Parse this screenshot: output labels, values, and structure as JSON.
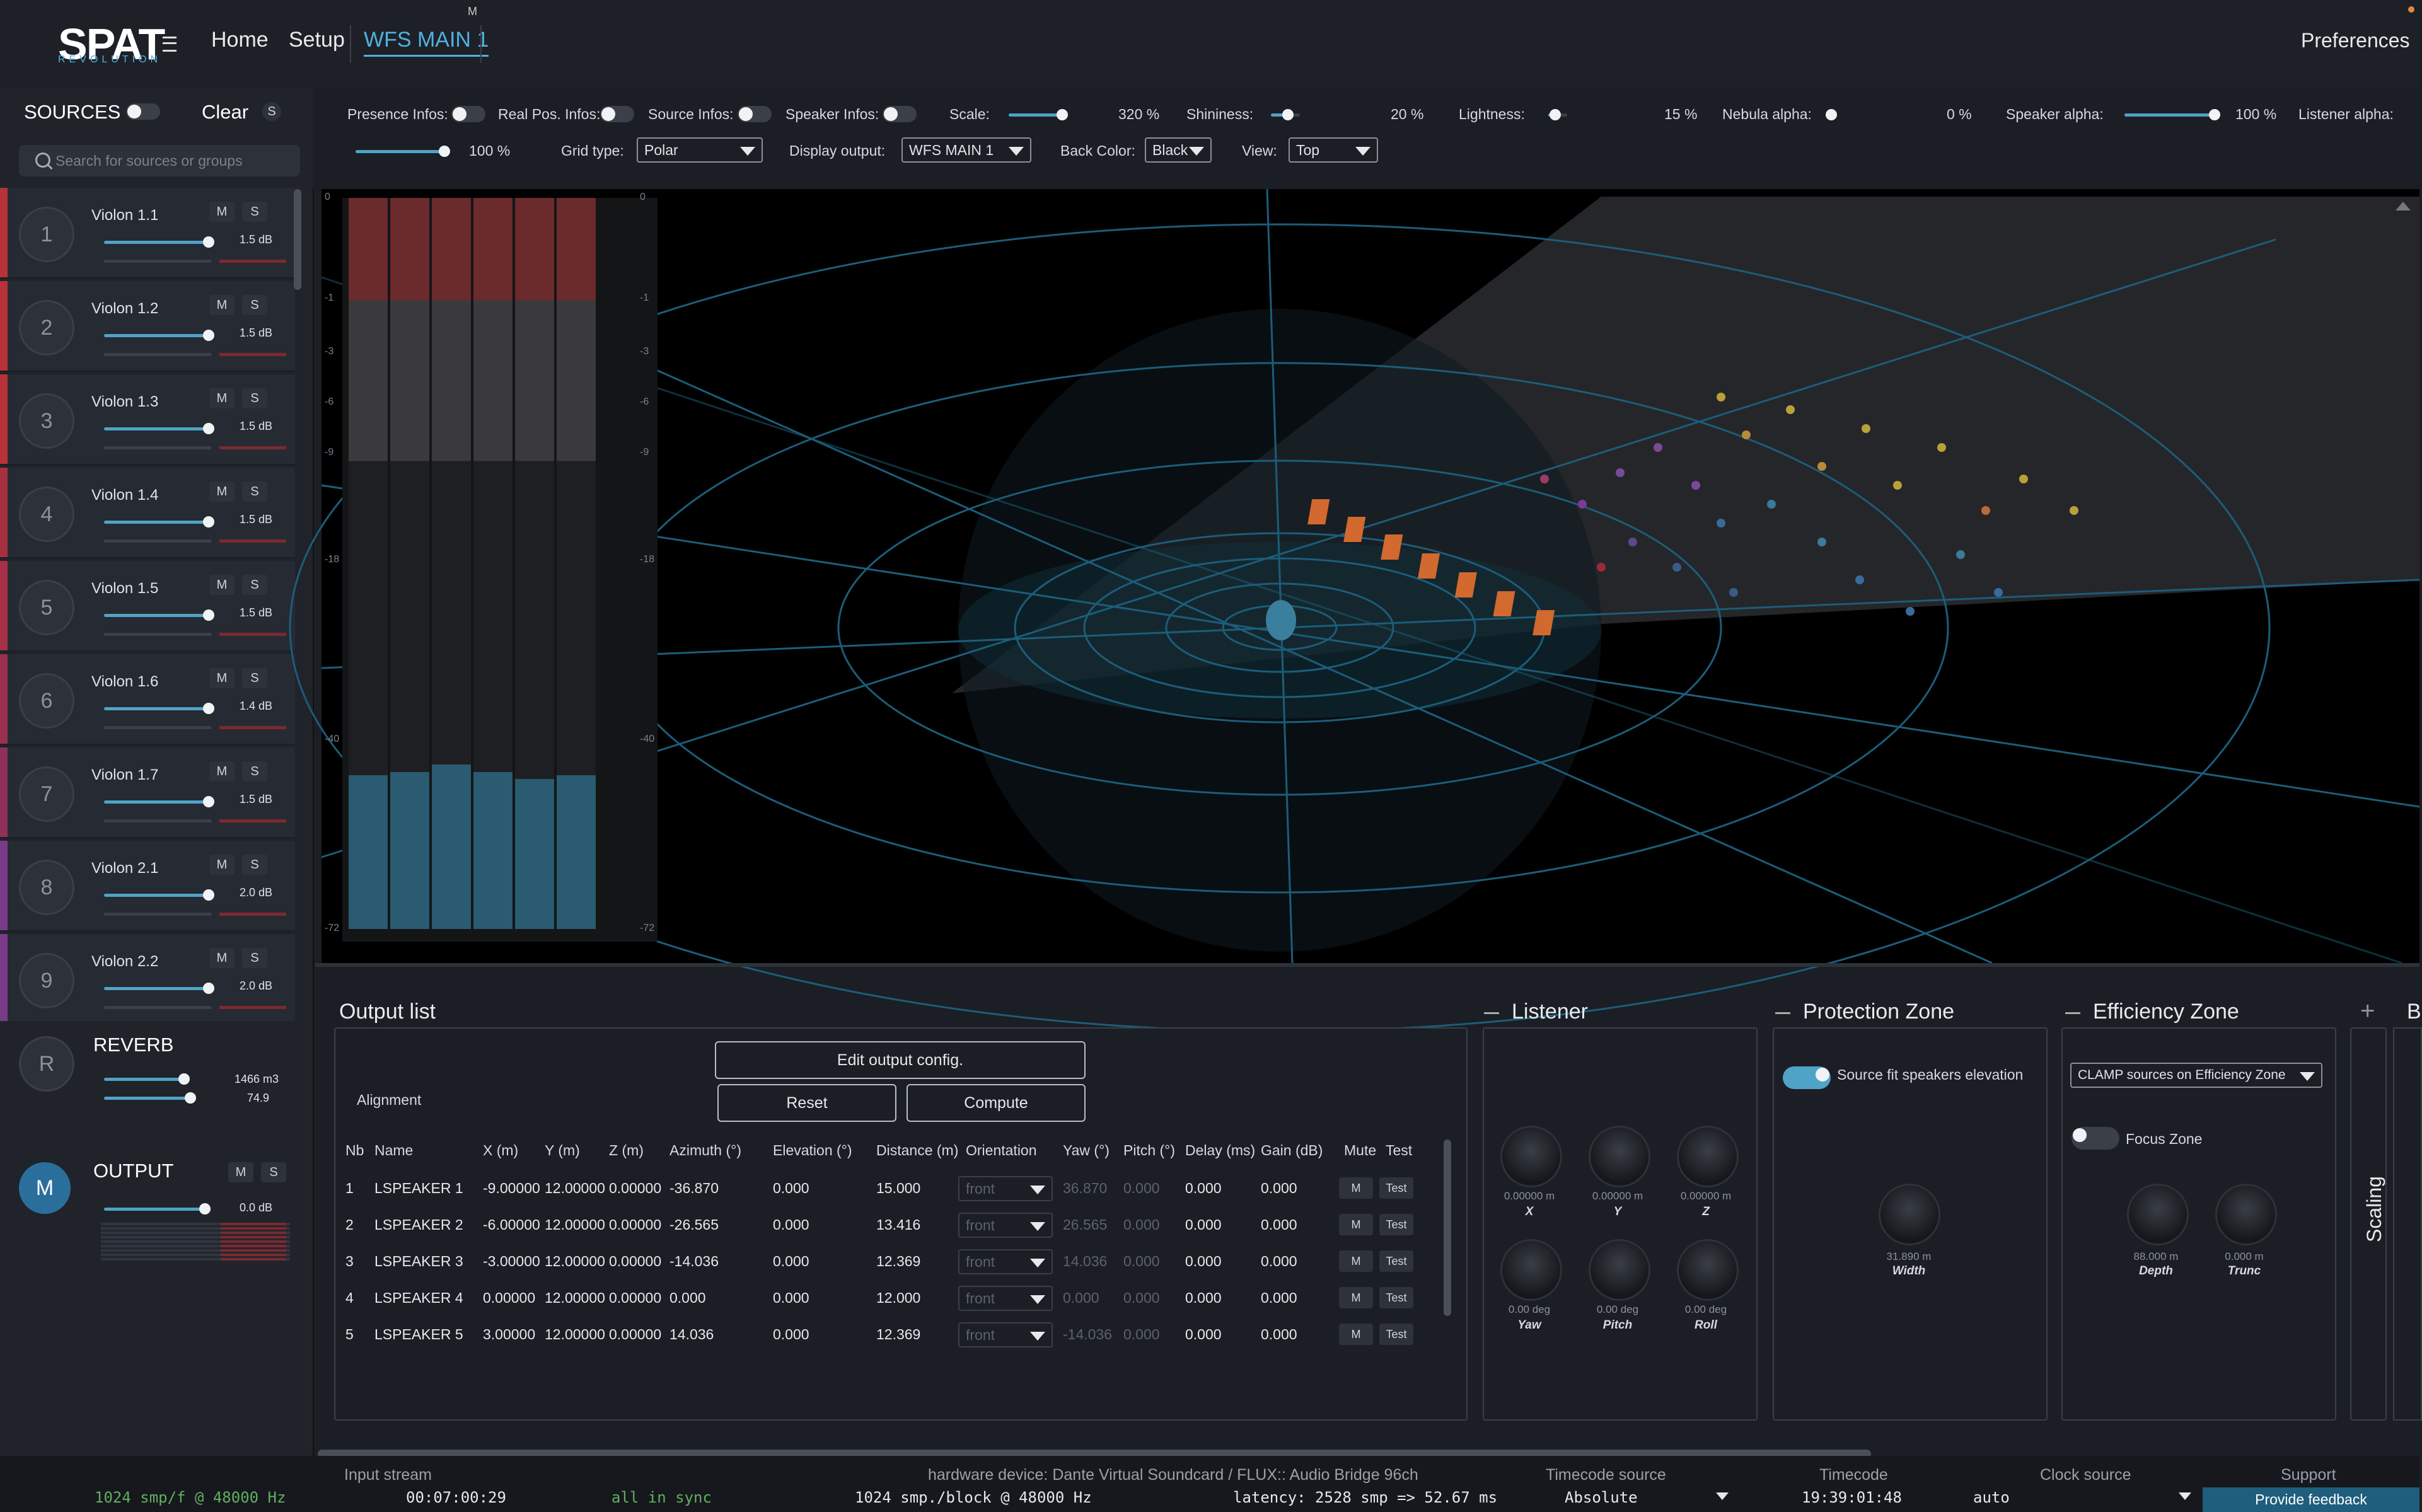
{
  "app": {
    "logo": "SPAT",
    "logo_sub": "REVOLUTION",
    "m_badge": "M"
  },
  "nav": {
    "home": "Home",
    "setup": "Setup",
    "active": "WFS MAIN 1",
    "preferences": "Preferences"
  },
  "sources": {
    "title": "SOURCES",
    "clear": "Clear",
    "s_label": "S",
    "search_placeholder": "Search for sources or groups",
    "items": [
      {
        "num": "1",
        "name": "Violon 1.1",
        "db": "1.5 dB",
        "color": "#b8323a"
      },
      {
        "num": "2",
        "name": "Violon 1.2",
        "db": "1.5 dB",
        "color": "#b8323a"
      },
      {
        "num": "3",
        "name": "Violon 1.3",
        "db": "1.5 dB",
        "color": "#b8323a"
      },
      {
        "num": "4",
        "name": "Violon 1.4",
        "db": "1.5 dB",
        "color": "#a63040"
      },
      {
        "num": "5",
        "name": "Violon 1.5",
        "db": "1.5 dB",
        "color": "#a63048"
      },
      {
        "num": "6",
        "name": "Violon 1.6",
        "db": "1.4 dB",
        "color": "#9a3050"
      },
      {
        "num": "7",
        "name": "Violon 1.7",
        "db": "1.5 dB",
        "color": "#903058"
      },
      {
        "num": "8",
        "name": "Violon 2.1",
        "db": "2.0 dB",
        "color": "#7a3a8a"
      },
      {
        "num": "9",
        "name": "Violon 2.2",
        "db": "2.0 dB",
        "color": "#7a3a8a"
      }
    ],
    "m": "M",
    "s": "S"
  },
  "reverb": {
    "letter": "R",
    "name": "REVERB",
    "val1": "1466 m3",
    "val2": "74.9"
  },
  "output": {
    "letter": "M",
    "name": "OUTPUT",
    "db": "0.0 dB"
  },
  "toolbar": {
    "presence": "Presence Infos:",
    "realpos": "Real Pos. Infos:",
    "source": "Source Infos:",
    "speaker": "Speaker Infos:",
    "scale": "Scale:",
    "scale_val": "320 %",
    "shininess": "Shininess:",
    "shininess_val": "20 %",
    "lightness": "Lightness:",
    "lightness_val": "15 %",
    "nebula": "Nebula alpha:",
    "nebula_val": "0 %",
    "speaker_alpha": "Speaker alpha:",
    "speaker_alpha_val": "100 %",
    "listener_alpha": "Listener alpha:",
    "listener_alpha_val": "100 %",
    "grid_type": "Grid type:",
    "grid_val": "Polar",
    "display_output": "Display output:",
    "display_val": "WFS MAIN 1",
    "back_color": "Back Color:",
    "back_val": "Black",
    "view": "View:",
    "view_val": "Top"
  },
  "meter_scale": [
    "0",
    "-1",
    "-3",
    "-6",
    "-9",
    "-18",
    "-40",
    "-72"
  ],
  "output_list": {
    "title": "Output list",
    "edit": "Edit output config.",
    "alignment": "Alignment",
    "reset": "Reset",
    "compute": "Compute",
    "headers": [
      "Nb",
      "Name",
      "X (m)",
      "Y (m)",
      "Z (m)",
      "Azimuth (°)",
      "Elevation (°)",
      "Distance (m)",
      "Orientation",
      "Yaw (°)",
      "Pitch (°)",
      "Delay (ms)",
      "Gain (dB)",
      "Mute",
      "Test"
    ],
    "rows": [
      {
        "nb": "1",
        "name": "LSPEAKER 1",
        "x": "-9.00000",
        "y": "12.00000",
        "z": "0.00000",
        "az": "-36.870",
        "el": "0.000",
        "dist": "15.000",
        "orient": "front",
        "yaw": "36.870",
        "pitch": "0.000",
        "delay": "0.000",
        "gain": "0.000"
      },
      {
        "nb": "2",
        "name": "LSPEAKER 2",
        "x": "-6.00000",
        "y": "12.00000",
        "z": "0.00000",
        "az": "-26.565",
        "el": "0.000",
        "dist": "13.416",
        "orient": "front",
        "yaw": "26.565",
        "pitch": "0.000",
        "delay": "0.000",
        "gain": "0.000"
      },
      {
        "nb": "3",
        "name": "LSPEAKER 3",
        "x": "-3.00000",
        "y": "12.00000",
        "z": "0.00000",
        "az": "-14.036",
        "el": "0.000",
        "dist": "12.369",
        "orient": "front",
        "yaw": "14.036",
        "pitch": "0.000",
        "delay": "0.000",
        "gain": "0.000"
      },
      {
        "nb": "4",
        "name": "LSPEAKER 4",
        "x": "0.00000",
        "y": "12.00000",
        "z": "0.00000",
        "az": "0.000",
        "el": "0.000",
        "dist": "12.000",
        "orient": "front",
        "yaw": "0.000",
        "pitch": "0.000",
        "delay": "0.000",
        "gain": "0.000"
      },
      {
        "nb": "5",
        "name": "LSPEAKER 5",
        "x": "3.00000",
        "y": "12.00000",
        "z": "0.00000",
        "az": "14.036",
        "el": "0.000",
        "dist": "12.369",
        "orient": "front",
        "yaw": "-14.036",
        "pitch": "0.000",
        "delay": "0.000",
        "gain": "0.000"
      }
    ],
    "mute": "M",
    "test": "Test"
  },
  "listener": {
    "title": "Listener",
    "knobs": [
      {
        "val": "0.00000 m",
        "name": "X"
      },
      {
        "val": "0.00000 m",
        "name": "Y"
      },
      {
        "val": "0.00000 m",
        "name": "Z"
      },
      {
        "val": "0.00 deg",
        "name": "Yaw"
      },
      {
        "val": "0.00 deg",
        "name": "Pitch"
      },
      {
        "val": "0.00 deg",
        "name": "Roll"
      }
    ]
  },
  "protection": {
    "title": "Protection Zone",
    "fit": "Source fit speakers elevation",
    "width_val": "31.890 m",
    "width_name": "Width"
  },
  "efficiency": {
    "title": "Efficiency Zone",
    "clamp": "CLAMP sources on Efficiency Zone",
    "focus": "Focus Zone",
    "depth_val": "88.000 m",
    "depth_name": "Depth",
    "trunc_val": "0.000 m",
    "trunc_name": "Trunc"
  },
  "scaling": {
    "label": "Scaling",
    "plus": "+",
    "b": "B"
  },
  "status": {
    "input_stream_h": "Input stream",
    "input_stream": "1024 smp/f @ 48000 Hz",
    "time": "00:07:00:29",
    "sync": "all in sync",
    "hw_h": "hardware device: Dante Virtual Soundcard / FLUX:: Audio Bridge 96ch",
    "block": "1024 smp./block @ 48000 Hz",
    "latency": "latency: 2528 smp => 52.67 ms",
    "tc_source_h": "Timecode source",
    "tc_source": "Absolute",
    "tc_h": "Timecode",
    "tc": "19:39:01:48",
    "clock_h": "Clock source",
    "clock": "auto",
    "support_h": "Support",
    "feedback": "Provide feedback"
  }
}
